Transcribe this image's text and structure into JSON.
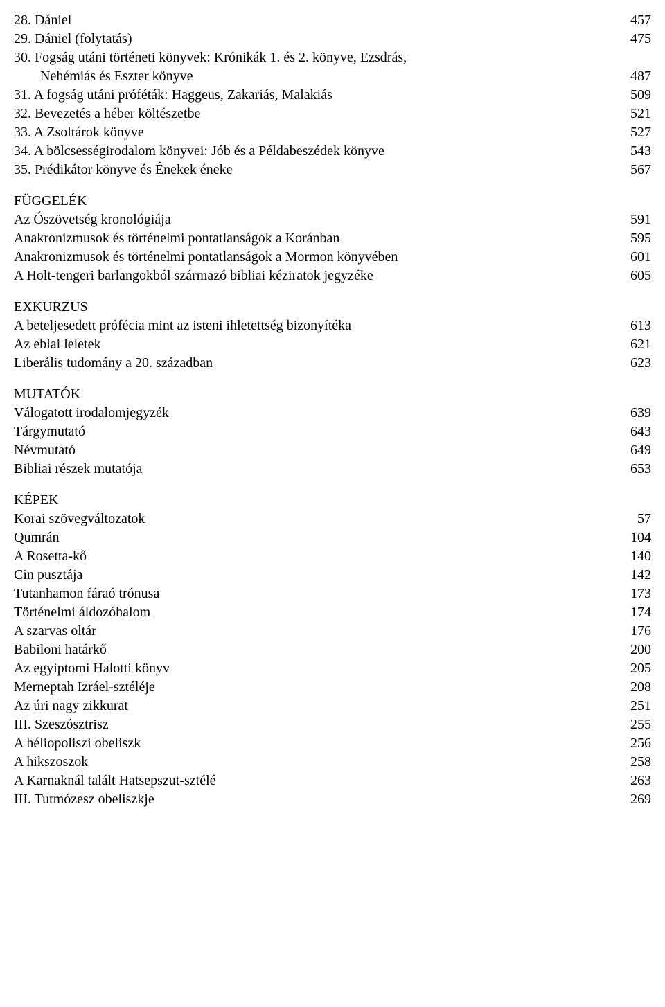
{
  "numbered": [
    {
      "lines": [
        "28. Dániel"
      ],
      "page": "457"
    },
    {
      "lines": [
        "29. Dániel (folytatás)"
      ],
      "page": "475"
    },
    {
      "lines": [
        "30. Fogság utáni történeti könyvek: Krónikák 1. és 2. könyve, Ezsdrás,",
        "Nehémiás és Eszter könyve"
      ],
      "page": "487"
    },
    {
      "lines": [
        "31. A fogság utáni próféták: Haggeus, Zakariás, Malakiás"
      ],
      "page": "509"
    },
    {
      "lines": [
        "32. Bevezetés a héber költészetbe"
      ],
      "page": "521"
    },
    {
      "lines": [
        "33. A Zsoltárok könyve"
      ],
      "page": "527"
    },
    {
      "lines": [
        "34. A bölcsességirodalom könyvei: Jób és a Példabeszédek könyve"
      ],
      "page": "543"
    },
    {
      "lines": [
        "35. Prédikátor könyve és Énekek éneke"
      ],
      "page": "567"
    }
  ],
  "sections": [
    {
      "heading": "FÜGGELÉK",
      "items": [
        {
          "label": "Az Ószövetség kronológiája",
          "page": "591"
        },
        {
          "label": "Anakronizmusok és történelmi pontatlanságok a Koránban",
          "page": "595"
        },
        {
          "label": "Anakronizmusok és történelmi pontatlanságok a Mormon könyvében",
          "page": "601"
        },
        {
          "label": "A Holt-tengeri barlangokból származó bibliai kéziratok jegyzéke",
          "page": "605"
        }
      ]
    },
    {
      "heading": "EXKURZUS",
      "items": [
        {
          "label": "A beteljesedett prófécia mint az isteni ihletettség bizonyítéka",
          "page": "613"
        },
        {
          "label": "Az eblai leletek",
          "page": "621"
        },
        {
          "label": "Liberális tudomány a 20. században",
          "page": "623"
        }
      ]
    },
    {
      "heading": "MUTATÓK",
      "items": [
        {
          "label": "Válogatott irodalomjegyzék",
          "page": "639"
        },
        {
          "label": "Tárgymutató",
          "page": "643"
        },
        {
          "label": "Névmutató",
          "page": "649"
        },
        {
          "label": "Bibliai részek mutatója",
          "page": "653"
        }
      ]
    },
    {
      "heading": "KÉPEK",
      "items": [
        {
          "label": "Korai szövegváltozatok",
          "page": "57"
        },
        {
          "label": "Qumrán",
          "page": "104"
        },
        {
          "label": "A Rosetta-kő",
          "page": "140"
        },
        {
          "label": "Cin pusztája",
          "page": "142"
        },
        {
          "label": "Tutanhamon fáraó trónusa",
          "page": "173"
        },
        {
          "label": "Történelmi áldozóhalom",
          "page": "174"
        },
        {
          "label": "A szarvas oltár",
          "page": "176"
        },
        {
          "label": "Babiloni határkő",
          "page": "200"
        },
        {
          "label": "Az egyiptomi Halotti könyv",
          "page": "205"
        },
        {
          "label": "Merneptah Izráel-sztéléje",
          "page": "208"
        },
        {
          "label": "Az úri nagy zikkurat",
          "page": "251"
        },
        {
          "label": "III. Szeszósztrisz",
          "page": "255"
        },
        {
          "label": "A héliopoliszi obeliszk",
          "page": "256"
        },
        {
          "label": "A hikszoszok",
          "page": "258"
        },
        {
          "label": "A Karnaknál talált Hatsepszut-sztélé",
          "page": "263"
        },
        {
          "label": "III. Tutmózesz obeliszkje",
          "page": "269"
        }
      ]
    }
  ]
}
